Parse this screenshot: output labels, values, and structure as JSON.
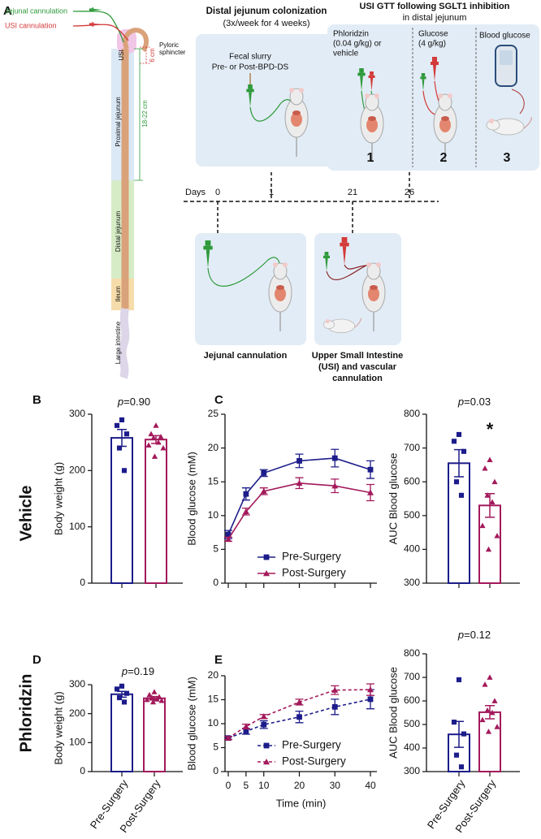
{
  "panel_letters": [
    "A",
    "B",
    "C",
    "D",
    "E"
  ],
  "row_labels": [
    "Vehicle",
    "Phloridzin"
  ],
  "panel_a": {
    "jejunal_cannulation": "Jejunal cannulation",
    "usi_cannulation": "USI cannulation",
    "pyloric": [
      "Pyloric",
      "sphincter"
    ],
    "usi": "USI",
    "six_cm": "6 cm",
    "length": "18-22 cm",
    "segments": [
      "Proximal jejunum",
      "Distal jejunum",
      "Ileum",
      "Large intestine"
    ],
    "colonization": {
      "title": "Distal jejunum colonization",
      "subtitle": "(3x/week for 4 weeks)",
      "slurry": [
        "Fecal slurry",
        "Pre- or Post-BPD-DS"
      ]
    },
    "gtt": {
      "title": "USI GTT following SGLT1 inhibition",
      "subtitle": "in distal jejunum",
      "phloridzin": [
        "Phloridzin",
        "(0.04 g/kg) or",
        "vehicle"
      ],
      "glucose": [
        "Glucose",
        "(4 g/kg)"
      ],
      "blood_glucose": "Blood glucose",
      "steps": [
        "1",
        "2",
        "3"
      ]
    },
    "timeline": {
      "label": "Days",
      "days": [
        0,
        1,
        21,
        26
      ]
    },
    "surgery": {
      "jejunal": "Jejunal cannulation",
      "usi": [
        "Upper Small Intestine",
        "(USI) and vascular",
        "cannulation"
      ]
    }
  },
  "chart_data": [
    {
      "type": "bar",
      "categories": [
        null,
        null
      ],
      "values": [
        258,
        255
      ],
      "errors": [
        15,
        7
      ],
      "colors": [
        "#1c1c8a",
        "#a3195b"
      ],
      "markers": [
        "square",
        "triangle"
      ],
      "points": [
        [
          290,
          280,
          265,
          240,
          200
        ],
        [
          280,
          265,
          260,
          258,
          250,
          245,
          240,
          225
        ]
      ],
      "ylabel": "Body weight (g)",
      "ylim": [
        0,
        300
      ],
      "yticks": [
        0,
        100,
        200,
        300
      ],
      "annotation": "p=0.90"
    },
    {
      "type": "line",
      "x": [
        0,
        5,
        10,
        20,
        30,
        40
      ],
      "xlim": [
        0,
        40
      ],
      "ylabel": "Blood glucose (mM)",
      "ylim": [
        0,
        25
      ],
      "yticks": [
        0,
        5,
        10,
        15,
        20,
        25
      ],
      "legend": "lower right",
      "series": [
        {
          "name": "Pre-Surgery",
          "color": "#1c1c8a",
          "marker": "square",
          "dashed": false,
          "values": [
            7.2,
            13.2,
            16.3,
            18.1,
            18.5,
            16.8
          ],
          "errors": [
            0.6,
            0.9,
            0.5,
            1.0,
            1.3,
            1.3
          ]
        },
        {
          "name": "Post-Surgery",
          "color": "#a3195b",
          "marker": "triangle",
          "dashed": false,
          "values": [
            6.5,
            10.6,
            13.6,
            14.8,
            14.4,
            13.4
          ],
          "errors": [
            0.3,
            0.5,
            0.5,
            0.8,
            1.0,
            1.2
          ]
        }
      ]
    },
    {
      "type": "bar",
      "categories": [
        null,
        null
      ],
      "values": [
        655,
        530
      ],
      "errors": [
        40,
        35
      ],
      "colors": [
        "#1c1c8a",
        "#a3195b"
      ],
      "markers": [
        "square",
        "triangle"
      ],
      "points": [
        [
          740,
          720,
          690,
          600,
          560
        ],
        [
          665,
          640,
          600,
          560,
          540,
          470,
          440,
          400
        ]
      ],
      "ylabel": "AUC Blood glucose",
      "ylim": [
        300,
        800
      ],
      "yticks": [
        300,
        400,
        500,
        600,
        700,
        800
      ],
      "annotation": "p=0.03",
      "star": "*"
    },
    {
      "type": "bar",
      "categories": [
        "Pre-Surgery",
        "Post-Surgery"
      ],
      "values": [
        267,
        253
      ],
      "errors": [
        10,
        6
      ],
      "colors": [
        "#1c1c8a",
        "#a3195b"
      ],
      "markers": [
        "square",
        "triangle"
      ],
      "points": [
        [
          295,
          285,
          270,
          255,
          240
        ],
        [
          275,
          265,
          258,
          255,
          250,
          248,
          245,
          240
        ]
      ],
      "ylabel": "Body weight (g)",
      "ylim": [
        0,
        300
      ],
      "yticks": [
        0,
        100,
        200,
        300
      ],
      "annotation": "p=0.19"
    },
    {
      "type": "line",
      "x": [
        0,
        5,
        10,
        20,
        30,
        40
      ],
      "xlim": [
        0,
        40
      ],
      "xticks": [
        0,
        5,
        10,
        20,
        30,
        40
      ],
      "xlabel": "Time (min)",
      "ylabel": "Blood glucose (mM)",
      "ylim": [
        0,
        20
      ],
      "yticks": [
        0,
        5,
        10,
        15,
        20
      ],
      "legend": "lower right",
      "series": [
        {
          "name": "Pre-Surgery",
          "color": "#1c1c8a",
          "marker": "square",
          "dashed": true,
          "values": [
            7.0,
            8.4,
            9.8,
            11.4,
            13.5,
            15.1
          ],
          "errors": [
            0.3,
            0.6,
            0.8,
            1.2,
            1.6,
            2.0
          ]
        },
        {
          "name": "Post-Surgery",
          "color": "#a3195b",
          "marker": "triangle",
          "dashed": true,
          "values": [
            7.0,
            9.4,
            11.5,
            14.5,
            17.0,
            17.1
          ],
          "errors": [
            0.3,
            0.5,
            0.4,
            0.6,
            0.9,
            1.2
          ]
        }
      ]
    },
    {
      "type": "bar",
      "categories": [
        "Pre-Surgery",
        "Post-Surgery"
      ],
      "values": [
        458,
        552
      ],
      "errors": [
        55,
        28
      ],
      "colors": [
        "#1c1c8a",
        "#a3195b"
      ],
      "markers": [
        "square",
        "triangle"
      ],
      "points": [
        [
          690,
          510,
          460,
          370,
          320
        ],
        [
          700,
          670,
          600,
          560,
          550,
          520,
          490,
          470
        ]
      ],
      "ylabel": "AUC Blood glucose",
      "ylim": [
        300,
        800
      ],
      "yticks": [
        300,
        400,
        500,
        600,
        700,
        800
      ],
      "annotation": "p=0.12"
    }
  ]
}
